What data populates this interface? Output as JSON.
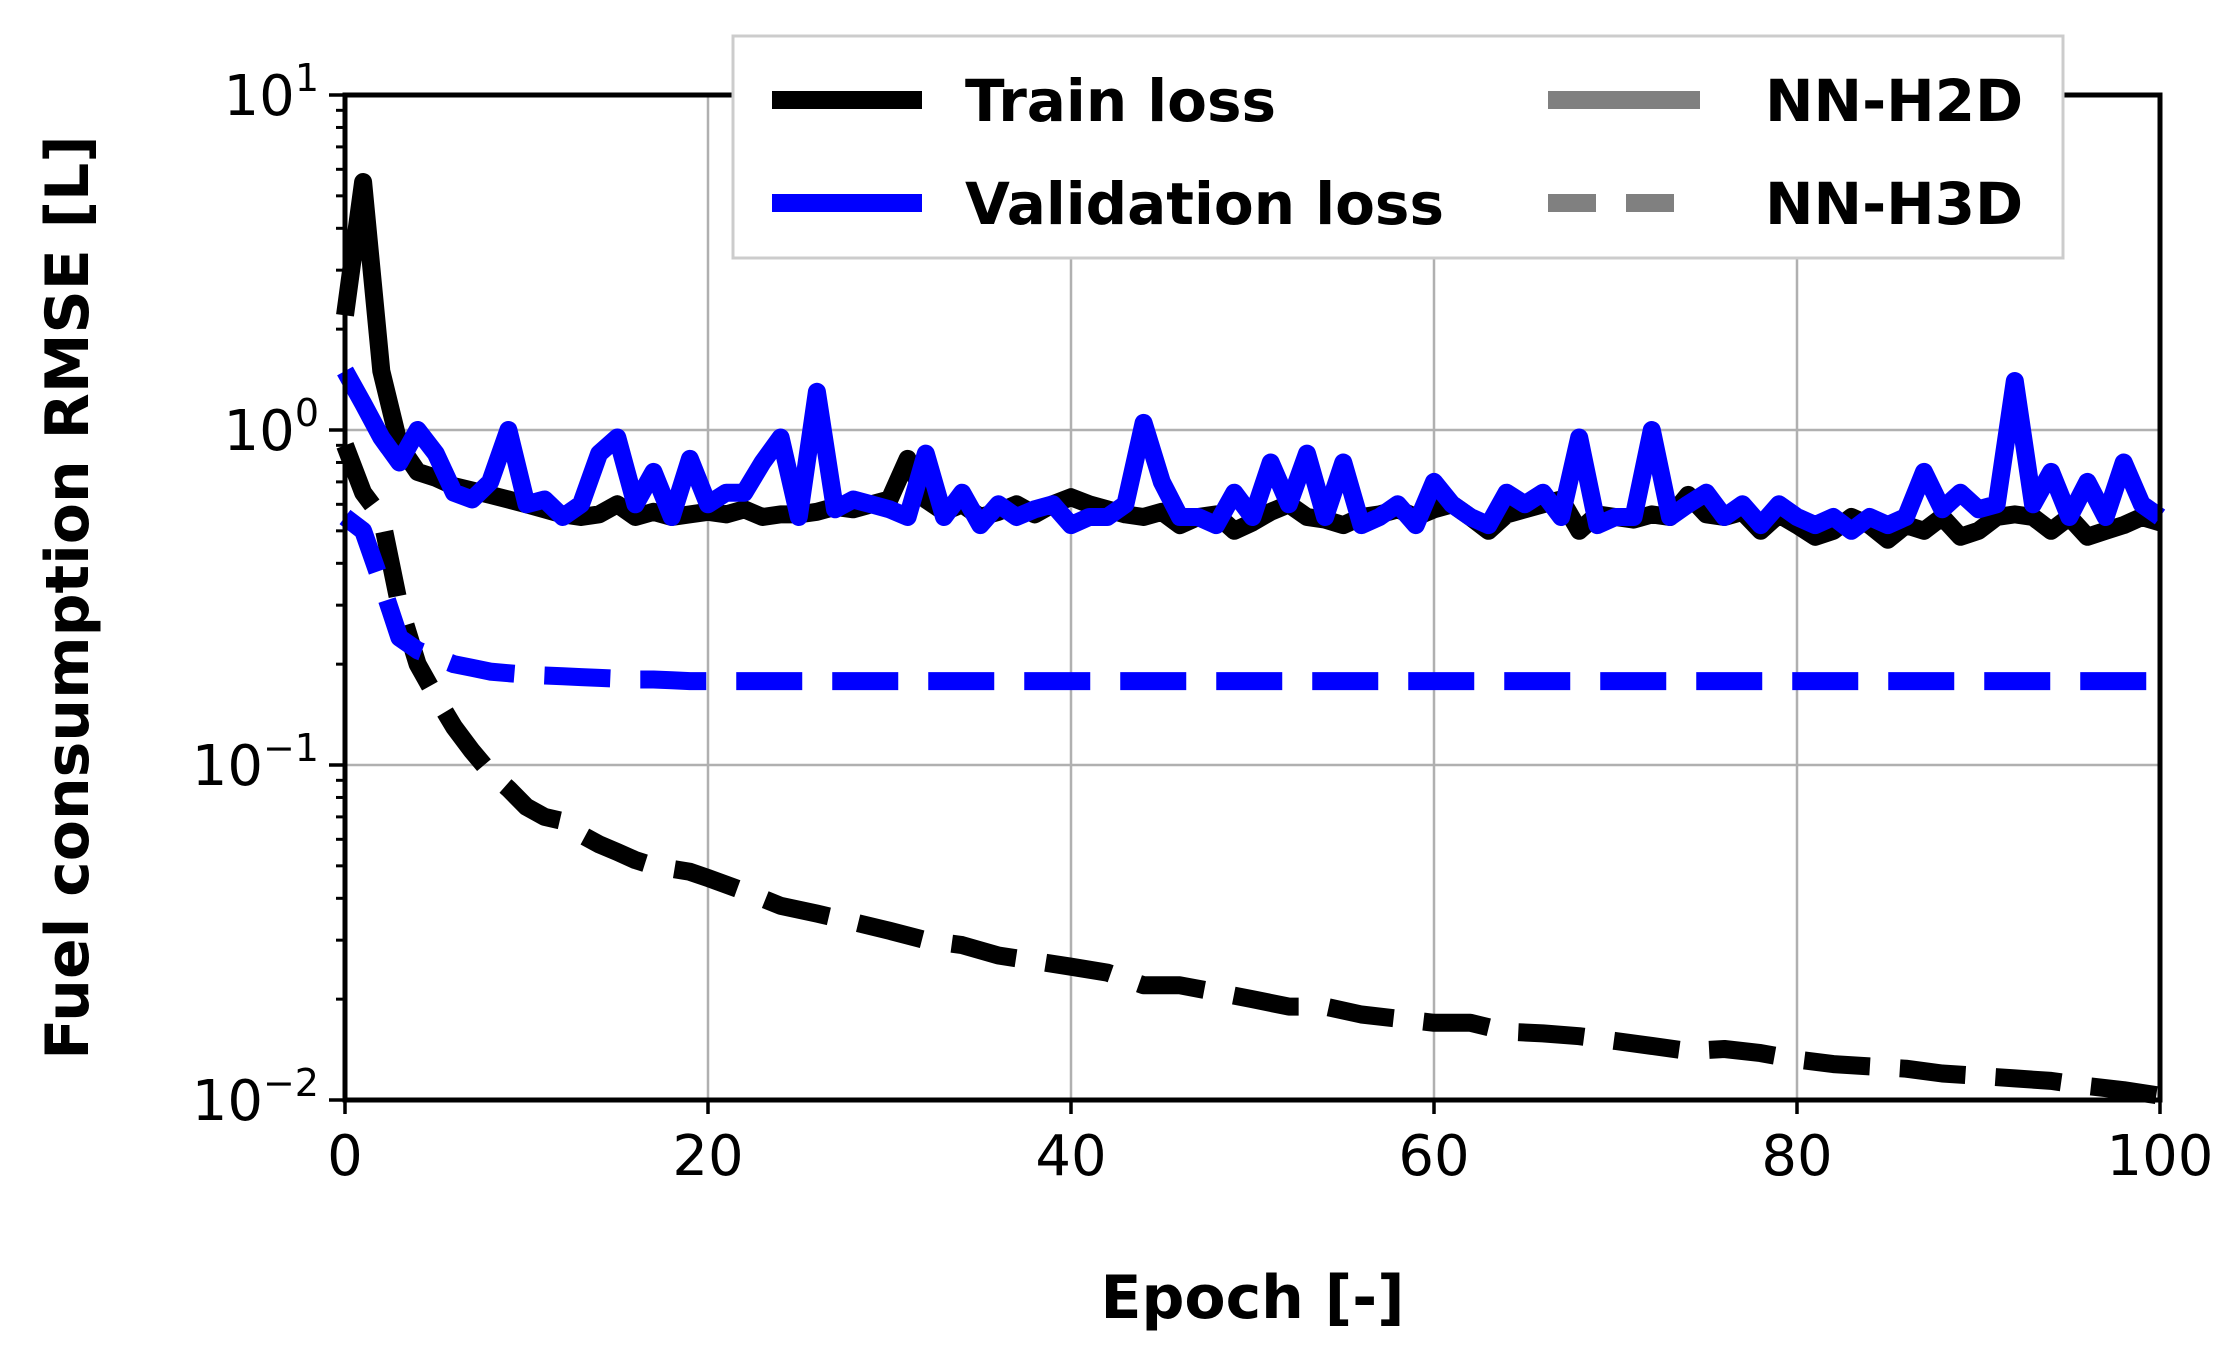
{
  "chart_data": {
    "type": "line",
    "title": "",
    "xlabel": "Epoch  [-]",
    "ylabel": "Fuel consumption  RMSE  [L]",
    "xlim": [
      0,
      100
    ],
    "ylim": [
      0.01,
      10
    ],
    "yscale": "log",
    "grid": true,
    "x_ticks": [
      0,
      20,
      40,
      60,
      80,
      100
    ],
    "x_tick_labels": [
      "0",
      "20",
      "40",
      "60",
      "80",
      "100"
    ],
    "y_ticks": [
      {
        "value": 10,
        "base": "10",
        "exp": "1"
      },
      {
        "value": 1,
        "base": "10",
        "exp": "0"
      },
      {
        "value": 0.1,
        "base": "10",
        "exp": "−1"
      },
      {
        "value": 0.01,
        "base": "10",
        "exp": "−2"
      }
    ],
    "legend": {
      "position": "top-right",
      "entries": [
        {
          "label": "Train loss",
          "color": "#000000",
          "style": "solid"
        },
        {
          "label": "Validation loss",
          "color": "#0000ff",
          "style": "solid"
        },
        {
          "label": "NN-H2D",
          "color": "#808080",
          "style": "solid"
        },
        {
          "label": "NN-H3D",
          "color": "#808080",
          "style": "dashed"
        }
      ]
    },
    "series": [
      {
        "name": "Train loss NN-H2D",
        "color": "#000000",
        "style": "solid",
        "x": [
          0,
          1,
          2,
          3,
          4,
          5,
          6,
          7,
          8,
          9,
          10,
          11,
          12,
          13,
          14,
          15,
          16,
          17,
          18,
          19,
          20,
          21,
          22,
          23,
          24,
          25,
          26,
          27,
          28,
          29,
          30,
          31,
          32,
          33,
          34,
          35,
          36,
          37,
          38,
          39,
          40,
          41,
          42,
          43,
          44,
          45,
          46,
          47,
          48,
          49,
          50,
          51,
          52,
          53,
          54,
          55,
          56,
          57,
          58,
          59,
          60,
          61,
          62,
          63,
          64,
          65,
          66,
          67,
          68,
          69,
          70,
          71,
          72,
          73,
          74,
          75,
          76,
          77,
          78,
          79,
          80,
          81,
          82,
          83,
          84,
          85,
          86,
          87,
          88,
          89,
          90,
          91,
          92,
          93,
          94,
          95,
          96,
          97,
          98,
          99,
          100
        ],
        "values": [
          2.2,
          5.5,
          1.5,
          0.9,
          0.75,
          0.72,
          0.68,
          0.66,
          0.64,
          0.62,
          0.6,
          0.58,
          0.56,
          0.55,
          0.56,
          0.6,
          0.55,
          0.57,
          0.55,
          0.56,
          0.57,
          0.56,
          0.58,
          0.55,
          0.56,
          0.56,
          0.57,
          0.59,
          0.58,
          0.6,
          0.62,
          0.82,
          0.62,
          0.57,
          0.6,
          0.55,
          0.57,
          0.6,
          0.56,
          0.6,
          0.63,
          0.6,
          0.58,
          0.56,
          0.55,
          0.57,
          0.52,
          0.55,
          0.56,
          0.5,
          0.53,
          0.57,
          0.6,
          0.55,
          0.54,
          0.52,
          0.55,
          0.56,
          0.58,
          0.55,
          0.58,
          0.6,
          0.55,
          0.5,
          0.56,
          0.58,
          0.6,
          0.62,
          0.5,
          0.56,
          0.55,
          0.54,
          0.56,
          0.55,
          0.64,
          0.56,
          0.55,
          0.57,
          0.5,
          0.56,
          0.52,
          0.48,
          0.5,
          0.55,
          0.52,
          0.47,
          0.52,
          0.5,
          0.55,
          0.48,
          0.5,
          0.55,
          0.56,
          0.55,
          0.5,
          0.55,
          0.48,
          0.5,
          0.52,
          0.55,
          0.53
        ]
      },
      {
        "name": "Validation loss NN-H2D",
        "color": "#0000ff",
        "style": "solid",
        "x": [
          0,
          1,
          2,
          3,
          4,
          5,
          6,
          7,
          8,
          9,
          10,
          11,
          12,
          13,
          14,
          15,
          16,
          17,
          18,
          19,
          20,
          21,
          22,
          23,
          24,
          25,
          26,
          27,
          28,
          29,
          30,
          31,
          32,
          33,
          34,
          35,
          36,
          37,
          38,
          39,
          40,
          41,
          42,
          43,
          44,
          45,
          46,
          47,
          48,
          49,
          50,
          51,
          52,
          53,
          54,
          55,
          56,
          57,
          58,
          59,
          60,
          61,
          62,
          63,
          64,
          65,
          66,
          67,
          68,
          69,
          70,
          71,
          72,
          73,
          74,
          75,
          76,
          77,
          78,
          79,
          80,
          81,
          82,
          83,
          84,
          85,
          86,
          87,
          88,
          89,
          90,
          91,
          92,
          93,
          94,
          95,
          96,
          97,
          98,
          99,
          100
        ],
        "values": [
          1.5,
          1.2,
          0.95,
          0.8,
          1.0,
          0.85,
          0.65,
          0.62,
          0.7,
          1.0,
          0.6,
          0.62,
          0.55,
          0.6,
          0.85,
          0.95,
          0.6,
          0.75,
          0.55,
          0.82,
          0.6,
          0.65,
          0.65,
          0.8,
          0.95,
          0.55,
          1.3,
          0.58,
          0.62,
          0.6,
          0.58,
          0.55,
          0.85,
          0.55,
          0.65,
          0.52,
          0.6,
          0.55,
          0.58,
          0.6,
          0.52,
          0.55,
          0.55,
          0.6,
          1.05,
          0.7,
          0.55,
          0.55,
          0.52,
          0.65,
          0.55,
          0.8,
          0.6,
          0.85,
          0.55,
          0.8,
          0.52,
          0.55,
          0.6,
          0.52,
          0.7,
          0.6,
          0.55,
          0.52,
          0.65,
          0.6,
          0.65,
          0.55,
          0.95,
          0.52,
          0.55,
          0.55,
          1.0,
          0.55,
          0.6,
          0.65,
          0.55,
          0.6,
          0.52,
          0.6,
          0.55,
          0.52,
          0.55,
          0.5,
          0.55,
          0.52,
          0.55,
          0.75,
          0.58,
          0.65,
          0.58,
          0.6,
          1.4,
          0.6,
          0.75,
          0.55,
          0.7,
          0.55,
          0.8,
          0.6,
          0.55
        ]
      },
      {
        "name": "Train loss NN-H3D",
        "color": "#000000",
        "style": "dashed",
        "x": [
          0,
          1,
          2,
          3,
          4,
          5,
          6,
          7,
          8,
          9,
          10,
          11,
          12,
          13,
          14,
          15,
          16,
          17,
          18,
          19,
          20,
          22,
          24,
          26,
          28,
          30,
          32,
          34,
          36,
          38,
          40,
          42,
          44,
          46,
          48,
          50,
          52,
          54,
          56,
          58,
          60,
          62,
          64,
          66,
          68,
          70,
          72,
          74,
          76,
          78,
          80,
          82,
          84,
          86,
          88,
          90,
          92,
          94,
          96,
          98,
          100
        ],
        "values": [
          0.9,
          0.65,
          0.55,
          0.3,
          0.2,
          0.16,
          0.13,
          0.11,
          0.095,
          0.085,
          0.075,
          0.07,
          0.068,
          0.062,
          0.058,
          0.055,
          0.052,
          0.05,
          0.049,
          0.048,
          0.046,
          0.042,
          0.038,
          0.036,
          0.034,
          0.032,
          0.03,
          0.029,
          0.027,
          0.026,
          0.025,
          0.024,
          0.022,
          0.022,
          0.021,
          0.02,
          0.019,
          0.019,
          0.018,
          0.0175,
          0.017,
          0.017,
          0.016,
          0.0158,
          0.0155,
          0.015,
          0.0145,
          0.014,
          0.0142,
          0.0138,
          0.0132,
          0.0128,
          0.0126,
          0.0124,
          0.012,
          0.0118,
          0.0116,
          0.0114,
          0.011,
          0.0107,
          0.0103
        ]
      },
      {
        "name": "Validation loss NN-H3D",
        "color": "#0000ff",
        "style": "dashed",
        "x": [
          0,
          1,
          2,
          3,
          4,
          5,
          6,
          7,
          8,
          9,
          10,
          11,
          12,
          13,
          14,
          15,
          16,
          17,
          18,
          19,
          20,
          25,
          30,
          40,
          50,
          60,
          70,
          80,
          90,
          100
        ],
        "values": [
          0.55,
          0.5,
          0.35,
          0.24,
          0.22,
          0.21,
          0.2,
          0.195,
          0.19,
          0.188,
          0.186,
          0.185,
          0.184,
          0.183,
          0.182,
          0.181,
          0.18,
          0.18,
          0.179,
          0.178,
          0.178,
          0.178,
          0.178,
          0.178,
          0.178,
          0.178,
          0.178,
          0.178,
          0.178,
          0.178
        ]
      }
    ]
  }
}
